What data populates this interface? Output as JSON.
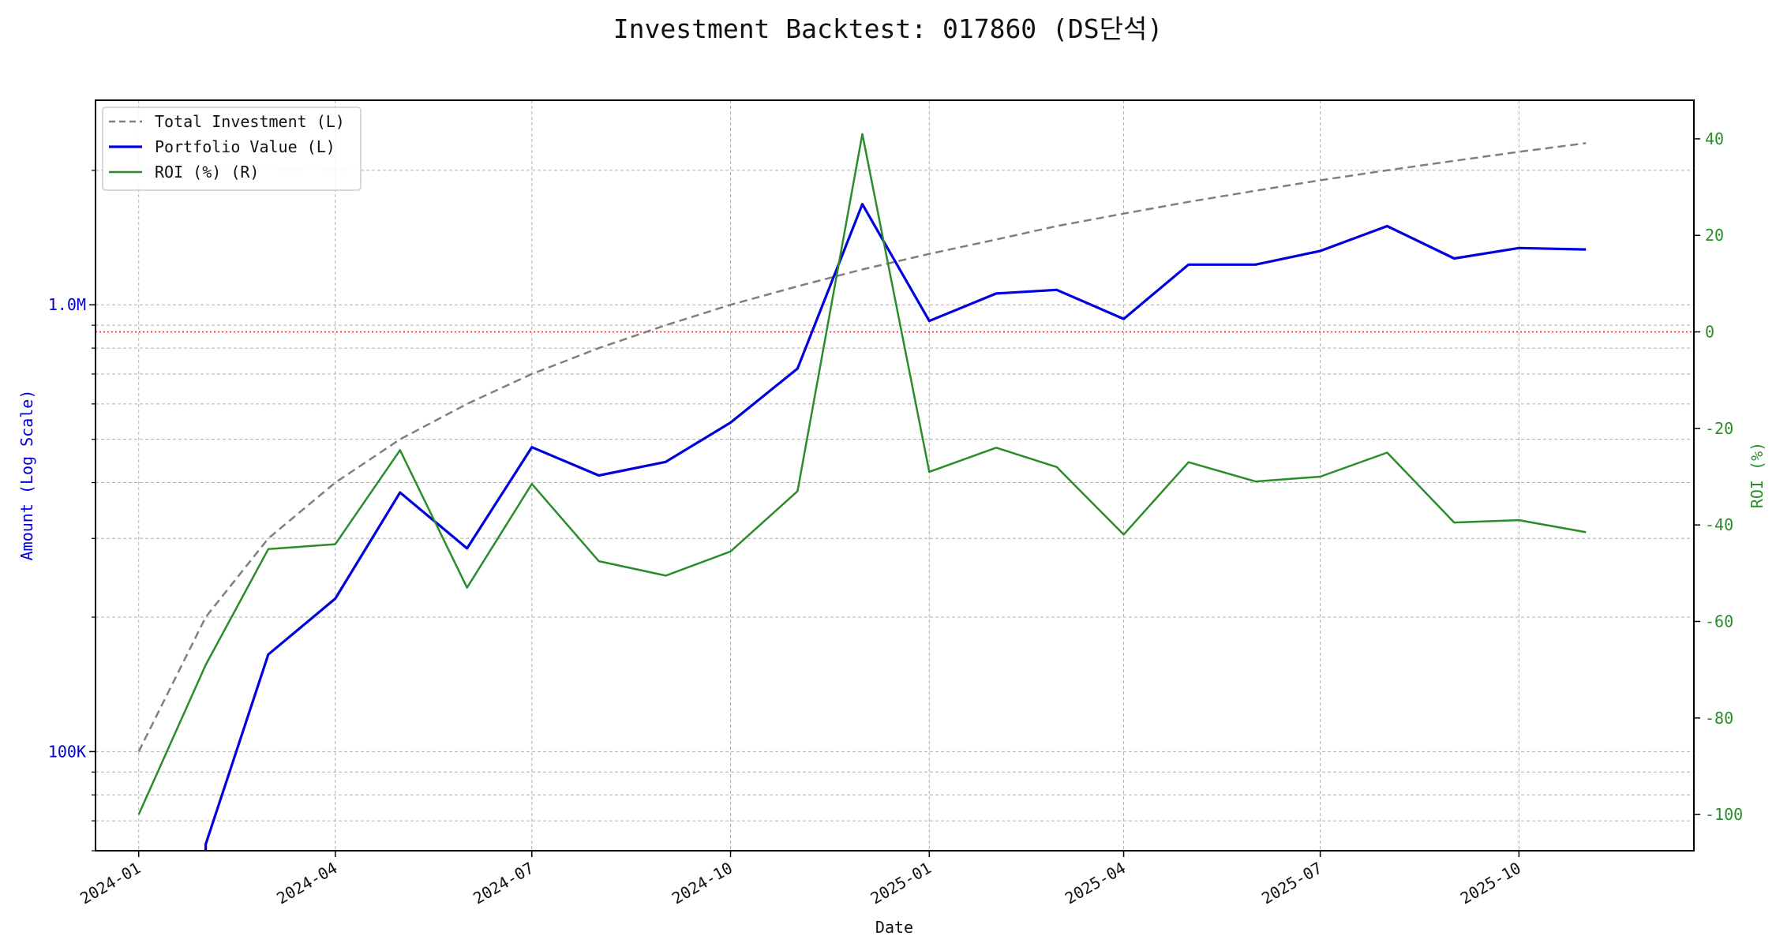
{
  "chart_data": {
    "type": "line",
    "title": "Investment Backtest: 017860 (DS단석)",
    "xlabel": "Date",
    "ylabel_left": "Amount (Log Scale)",
    "ylabel_right": "ROI (%)",
    "left_scale": "log",
    "left_ylim": [
      60000,
      2870000
    ],
    "right_ylim": [
      -107.5,
      48
    ],
    "x_range": [
      "2023-12-12",
      "2025-12-21"
    ],
    "x_ticks": [
      "2024-01",
      "2024-04",
      "2024-07",
      "2024-10",
      "2025-01",
      "2025-04",
      "2025-07",
      "2025-10"
    ],
    "left_ticks": [
      {
        "value": 100000,
        "label": "100K"
      },
      {
        "value": 1000000,
        "label": "1.0M"
      }
    ],
    "right_ticks": [
      -100,
      -80,
      -60,
      -40,
      -20,
      0,
      20,
      40
    ],
    "grid": true,
    "legend_position": "upper-left",
    "reference_line": {
      "axis": "right",
      "value": 0,
      "color": "#e03030",
      "style": "dotted"
    },
    "x": [
      "2024-01-01",
      "2024-02-01",
      "2024-03-01",
      "2024-04-01",
      "2024-05-01",
      "2024-06-01",
      "2024-07-01",
      "2024-08-01",
      "2024-09-01",
      "2024-10-01",
      "2024-11-01",
      "2024-12-01",
      "2025-01-01",
      "2025-02-01",
      "2025-03-01",
      "2025-04-01",
      "2025-05-01",
      "2025-06-01",
      "2025-07-01",
      "2025-08-01",
      "2025-09-01",
      "2025-10-01",
      "2025-11-01"
    ],
    "series": [
      {
        "name": "Total Investment (L)",
        "axis": "left",
        "color": "#7f7f7f",
        "style": "dashed",
        "values": [
          100000,
          200000,
          300000,
          400000,
          500000,
          600000,
          700000,
          800000,
          900000,
          1000000,
          1100000,
          1200000,
          1300000,
          1400000,
          1500000,
          1600000,
          1700000,
          1800000,
          1900000,
          2000000,
          2100000,
          2200000,
          2300000
        ]
      },
      {
        "name": "Portfolio Value (L)",
        "axis": "left",
        "color": "#0000dd",
        "style": "solid",
        "values": [
          null,
          62000,
          165000,
          220000,
          380000,
          285000,
          480000,
          415000,
          445000,
          545000,
          720000,
          1680000,
          920000,
          1060000,
          1080000,
          930000,
          1230000,
          1230000,
          1320000,
          1500000,
          1270000,
          1340000,
          1330000
        ]
      },
      {
        "name": "ROI (%) (R)",
        "axis": "right",
        "color": "#2a8c2a",
        "style": "solid",
        "values": [
          -100,
          -69,
          -45,
          -44,
          -24.5,
          -53,
          -31.5,
          -47.5,
          -50.5,
          -45.5,
          -33,
          41,
          -29,
          -24,
          -28,
          -42,
          -27,
          -31,
          -30,
          -25,
          -39.5,
          -39,
          -41.5
        ]
      }
    ]
  }
}
